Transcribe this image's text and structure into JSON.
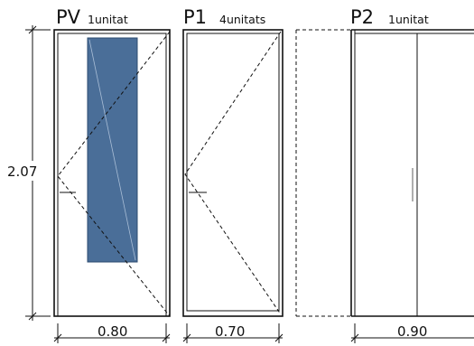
{
  "doors": [
    {
      "code": "PV",
      "qty": "1unitat",
      "width": "0.80"
    },
    {
      "code": "P1",
      "qty": "4unitats",
      "width": "0.70"
    },
    {
      "code": "P2",
      "qty": "1unitat",
      "width": "0.90"
    }
  ],
  "height_dimension": "2.07",
  "colors": {
    "glass": "#4a6e98",
    "line": "#111111"
  }
}
